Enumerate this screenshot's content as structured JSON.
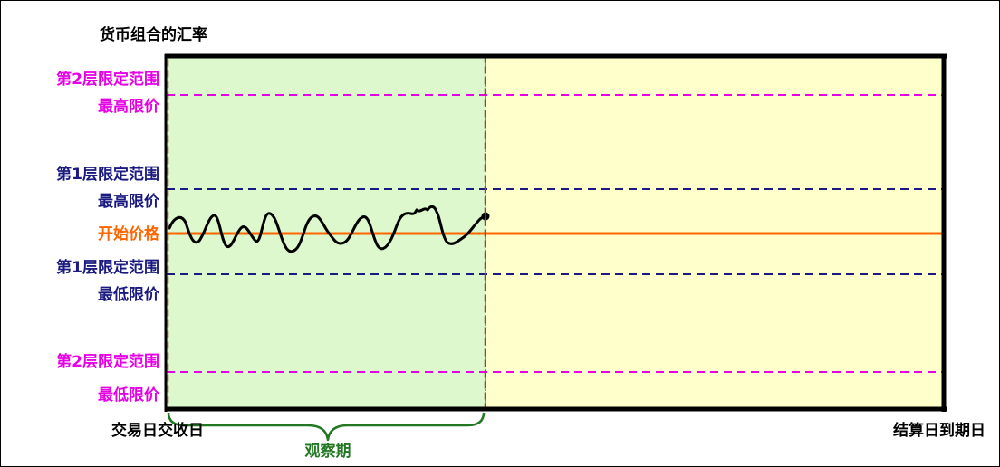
{
  "title": "货币组合的汇率",
  "bands": {
    "layer2_high": {
      "line1": "第2层限定范围",
      "line2": "最高限价",
      "color": "#e600e6"
    },
    "layer1_high": {
      "line1": "第1层限定范围",
      "line2": "最高限价",
      "color": "#1a1a80"
    },
    "start": {
      "label": "开始价格",
      "color": "#ff6600"
    },
    "layer1_low": {
      "line1": "第1层限定范围",
      "line2": "最低限价",
      "color": "#1a1a80"
    },
    "layer2_low": {
      "line1": "第2层限定范围",
      "line2": "最低限价",
      "color": "#e600e6"
    }
  },
  "x_labels": {
    "trade_date": "交易日交收日",
    "observation": "观察期",
    "settlement_date": "结算日到期日"
  },
  "colors": {
    "observation_fill": "#ddf8cc",
    "remaining_fill": "#ffffcc",
    "frame": "#000000",
    "observation_border": "#2f7f7f",
    "brace": "#227722"
  }
}
